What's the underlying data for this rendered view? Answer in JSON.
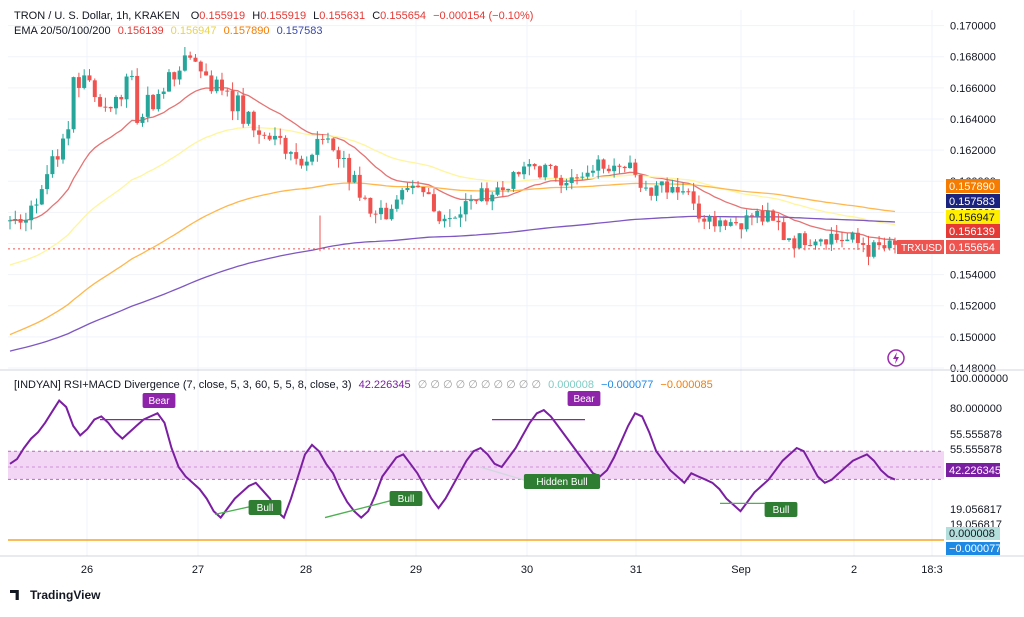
{
  "header": {
    "symbol": "TRON / U. S. Dollar, 1h, KRAKEN",
    "o_label": "O",
    "o_value": "0.155919",
    "h_label": "H",
    "h_value": "0.155919",
    "l_label": "L",
    "l_value": "0.155631",
    "c_label": "C",
    "c_value": "0.155654",
    "change": "−0.000154 (−0.10%)",
    "ema_label": "EMA 20/50/100/200",
    "ema20": "0.156139",
    "ema50": "0.156947",
    "ema100": "0.157890",
    "ema200": "0.157583"
  },
  "indicator": {
    "name": "[INDYAN] RSI+MACD Divergence (7, close, 5, 3, 60, 5, 5, 8, close, 3)",
    "rsi_value": "42.226345",
    "placeholders": "∅ ∅ ∅ ∅ ∅ ∅ ∅ ∅ ∅ ∅",
    "macd_a": "0.000008",
    "macd_b": "−0.000077",
    "macd_c": "−0.000085"
  },
  "brand": {
    "name": "TradingView",
    "icon": "tradingview-logo-icon"
  },
  "colors": {
    "bull": "#26a69a",
    "bear": "#ef5350",
    "ema20": "#e53935",
    "ema50": "#fff176",
    "ema100": "#f5a623",
    "ema200": "#5b4fc7",
    "rsi": "#7b1fa2",
    "band": "#f3d6f5",
    "macd_line": "#f5a623",
    "label_bull": "#2e7d32",
    "label_bear": "#8e24aa"
  },
  "chart_data": [
    {
      "type": "candlestick",
      "title": "TRON / U. S. Dollar, 1h, KRAKEN",
      "x_ticks": [
        "26",
        "27",
        "28",
        "29",
        "30",
        "31",
        "Sep",
        "2",
        "18:3"
      ],
      "y_ticks": [
        "0.170000",
        "0.168000",
        "0.166000",
        "0.164000",
        "0.162000",
        "0.160000",
        "0.158000",
        "0.156000",
        "0.154000",
        "0.152000",
        "0.150000",
        "0.148000"
      ],
      "ylim": [
        0.148,
        0.171
      ],
      "close_path": [
        0.1575,
        0.1578,
        0.1585,
        0.16,
        0.1615,
        0.163,
        0.1665,
        0.1668,
        0.1652,
        0.1647,
        0.1658,
        0.1662,
        0.1642,
        0.165,
        0.1657,
        0.1668,
        0.1675,
        0.168,
        0.167,
        0.1662,
        0.166,
        0.165,
        0.164,
        0.1633,
        0.1628,
        0.1626,
        0.1622,
        0.1615,
        0.1618,
        0.1625,
        0.1622,
        0.1615,
        0.16,
        0.159,
        0.1582,
        0.158,
        0.1585,
        0.159,
        0.1592,
        0.159,
        0.158,
        0.1578,
        0.158,
        0.1585,
        0.159,
        0.1593,
        0.1595,
        0.16,
        0.1605,
        0.161,
        0.1607,
        0.1605,
        0.1603,
        0.16,
        0.1601,
        0.161,
        0.1612,
        0.1615,
        0.1608,
        0.16,
        0.1596,
        0.16,
        0.1598,
        0.1596,
        0.159,
        0.158,
        0.1576,
        0.1576,
        0.1574,
        0.1575,
        0.1578,
        0.1576,
        0.1572,
        0.1565,
        0.1562,
        0.1564,
        0.1565,
        0.1565,
        0.1563,
        0.1562,
        0.156,
        0.1556,
        0.1557,
        0.1557
      ],
      "ema_lines": [
        {
          "name": "EMA 20",
          "last": 0.156139
        },
        {
          "name": "EMA 50",
          "last": 0.156947
        },
        {
          "name": "EMA 100",
          "last": 0.15789
        },
        {
          "name": "EMA 200",
          "last": 0.157583
        }
      ],
      "price_tags": [
        {
          "text": "0.157890",
          "value": 0.15789,
          "color": "#f57c00"
        },
        {
          "text": "0.157583",
          "value": 0.157583,
          "color": "#1a237e"
        },
        {
          "text": "0.156947",
          "value": 0.156947,
          "color": "#ffee00",
          "text_color": "#131722"
        },
        {
          "text": "0.156139",
          "value": 0.156139,
          "color": "#e53935"
        },
        {
          "text": "0.155654",
          "value": 0.155654,
          "color": "#ef5350",
          "prefix": "TRXUSD"
        }
      ],
      "current_price": 0.155654
    },
    {
      "type": "line",
      "title": "[INDYAN] RSI+MACD Divergence",
      "y_ticks": [
        "100.000000",
        "80.000000",
        "55.555878",
        "55.555878",
        "19.056817",
        "19.056817"
      ],
      "ylim": [
        0,
        100
      ],
      "band": [
        42.2,
        60
      ],
      "rsi": [
        52,
        55,
        62,
        68,
        72,
        78,
        85,
        92,
        88,
        76,
        70,
        74,
        80,
        82,
        78,
        72,
        68,
        72,
        76,
        80,
        82,
        84,
        78,
        62,
        50,
        44,
        40,
        36,
        30,
        22,
        18,
        24,
        30,
        34,
        38,
        40,
        35,
        30,
        22,
        18,
        30,
        44,
        58,
        64,
        60,
        52,
        46,
        36,
        28,
        22,
        18,
        22,
        32,
        44,
        50,
        56,
        58,
        52,
        46,
        38,
        30,
        24,
        30,
        38,
        46,
        54,
        60,
        62,
        58,
        52,
        50,
        56,
        62,
        70,
        78,
        84,
        86,
        82,
        76,
        70,
        64,
        58,
        52,
        46,
        44,
        48,
        56,
        66,
        76,
        84,
        82,
        72,
        60,
        54,
        48,
        44,
        40,
        46,
        44,
        42,
        40,
        36,
        30,
        26,
        22,
        28,
        34,
        38,
        42,
        48,
        54,
        58,
        62,
        60,
        52,
        44,
        40,
        42,
        46,
        50,
        54,
        56,
        58,
        54,
        48,
        44,
        42
      ],
      "rsi_tags": [
        {
          "text": "42.226345",
          "value": 42.226345
        }
      ],
      "macd_tags": [
        {
          "text": "0.000008"
        },
        {
          "text": "−0.000077"
        }
      ],
      "annotations": [
        {
          "label": "Bear",
          "kind": "bear"
        },
        {
          "label": "Bull",
          "kind": "bull"
        },
        {
          "label": "Bull",
          "kind": "bull"
        },
        {
          "label": "Bear",
          "kind": "bear"
        },
        {
          "label": "Hidden Bull",
          "kind": "bull"
        },
        {
          "label": "Bull",
          "kind": "bull"
        }
      ]
    }
  ]
}
